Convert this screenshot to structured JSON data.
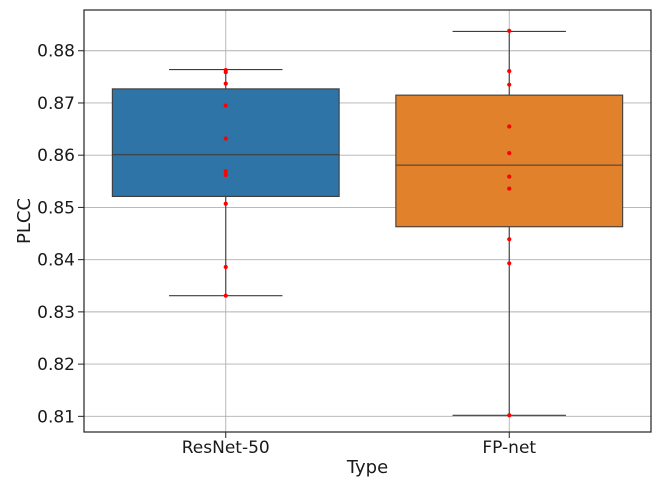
{
  "chart_data": {
    "type": "box",
    "xlabel": "Type",
    "ylabel": "PLCC",
    "ylim": [
      0.807,
      0.8878
    ],
    "yticks": [
      0.81,
      0.82,
      0.83,
      0.84,
      0.85,
      0.86,
      0.87,
      0.88
    ],
    "ytick_labels": [
      "0.81",
      "0.82",
      "0.83",
      "0.84",
      "0.85",
      "0.86",
      "0.87",
      "0.88"
    ],
    "grid": true,
    "legend": false,
    "categories": [
      "ResNet-50",
      "FP-net"
    ],
    "boxes": [
      {
        "category": "ResNet-50",
        "color": "#2e74a6",
        "whisker_low": 0.8331,
        "q1": 0.8521,
        "median": 0.8601,
        "q3": 0.8727,
        "whisker_high": 0.8764,
        "points": [
          0.8763,
          0.8759,
          0.8737,
          0.8695,
          0.8632,
          0.8569,
          0.8562,
          0.8507,
          0.8386,
          0.8331
        ]
      },
      {
        "category": "FP-net",
        "color": "#e1812c",
        "whisker_low": 0.8102,
        "q1": 0.8463,
        "median": 0.8581,
        "q3": 0.8715,
        "whisker_high": 0.8837,
        "points": [
          0.8838,
          0.8761,
          0.8735,
          0.8655,
          0.8604,
          0.8559,
          0.8536,
          0.8439,
          0.8393,
          0.8102
        ]
      }
    ],
    "point_color": "#ff0000"
  }
}
